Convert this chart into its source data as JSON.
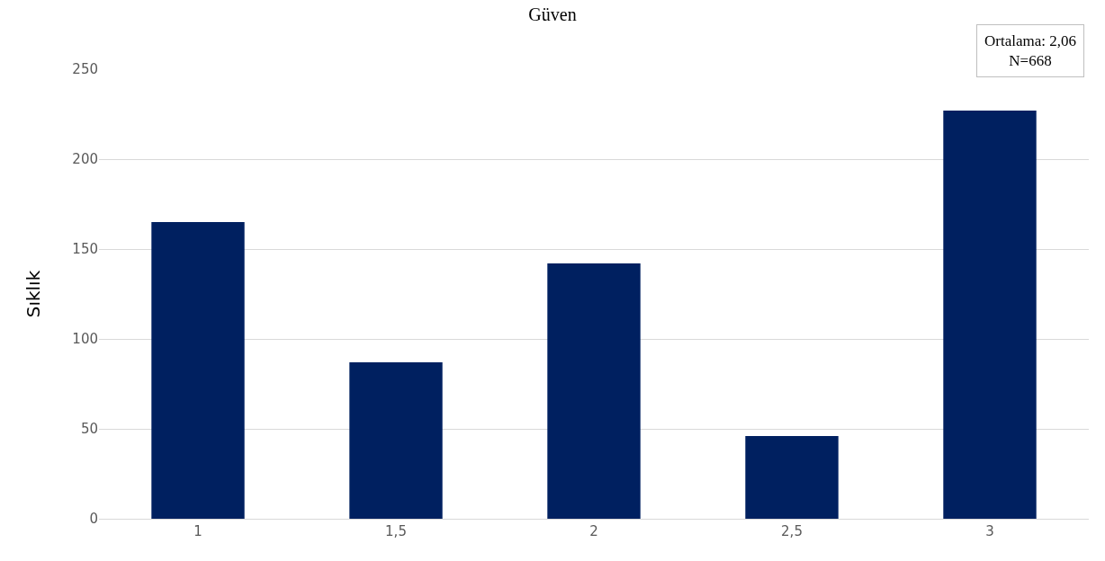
{
  "chart_data": {
    "type": "bar",
    "title": "Güven",
    "ylabel": "Sıklık",
    "categories": [
      "1",
      "1,5",
      "2",
      "2,5",
      "3"
    ],
    "values": [
      165,
      87,
      142,
      46,
      227
    ],
    "color": "#002060",
    "ylim": [
      0,
      250
    ],
    "yticks": [
      0,
      50,
      100,
      150,
      200,
      250
    ],
    "grid": "y",
    "annotations": [
      "Ortalama: 2,06",
      "N=668"
    ]
  }
}
